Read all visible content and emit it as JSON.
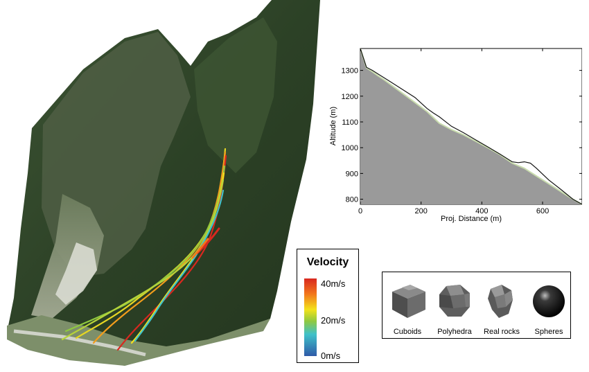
{
  "legend": {
    "title": "Velocity",
    "labels": [
      "40m/s",
      "20m/s",
      "0m/s"
    ]
  },
  "rocks": [
    {
      "label": "Cuboids",
      "icon": "cuboid-icon"
    },
    {
      "label": "Polyhedra",
      "icon": "polyhedron-icon"
    },
    {
      "label": "Real rocks",
      "icon": "real-rock-icon"
    },
    {
      "label": "Spheres",
      "icon": "sphere-icon"
    }
  ],
  "chart_data": {
    "type": "area",
    "title": "",
    "xlabel": "Proj. Distance (m)",
    "ylabel": "Altitude (m)",
    "xlim": [
      0,
      730
    ],
    "ylim": [
      780,
      1385
    ],
    "xticks": [
      0,
      200,
      400,
      600
    ],
    "yticks": [
      800,
      900,
      1000,
      1100,
      1200,
      1300
    ],
    "terrain": {
      "x": [
        0,
        20,
        40,
        60,
        80,
        100,
        140,
        180,
        220,
        260,
        300,
        340,
        380,
        420,
        460,
        500,
        540,
        580,
        620,
        660,
        700,
        730
      ],
      "y": [
        1385,
        1310,
        1295,
        1278,
        1262,
        1245,
        1210,
        1175,
        1140,
        1095,
        1070,
        1050,
        1025,
        1000,
        973,
        940,
        920,
        890,
        860,
        830,
        800,
        780
      ]
    },
    "trajectory": {
      "x": [
        0,
        20,
        40,
        60,
        80,
        100,
        140,
        180,
        220,
        240,
        260,
        300,
        340,
        380,
        420,
        460,
        500,
        520,
        540,
        560,
        580,
        620,
        660,
        700,
        730
      ],
      "y": [
        1385,
        1312,
        1300,
        1285,
        1270,
        1255,
        1225,
        1195,
        1152,
        1135,
        1120,
        1083,
        1058,
        1030,
        1003,
        975,
        945,
        942,
        945,
        940,
        920,
        875,
        838,
        800,
        780
      ]
    },
    "colors": {
      "terrain": "#9a9a9a",
      "trajectory": "#111111",
      "highlight": "#c9dcae"
    }
  }
}
